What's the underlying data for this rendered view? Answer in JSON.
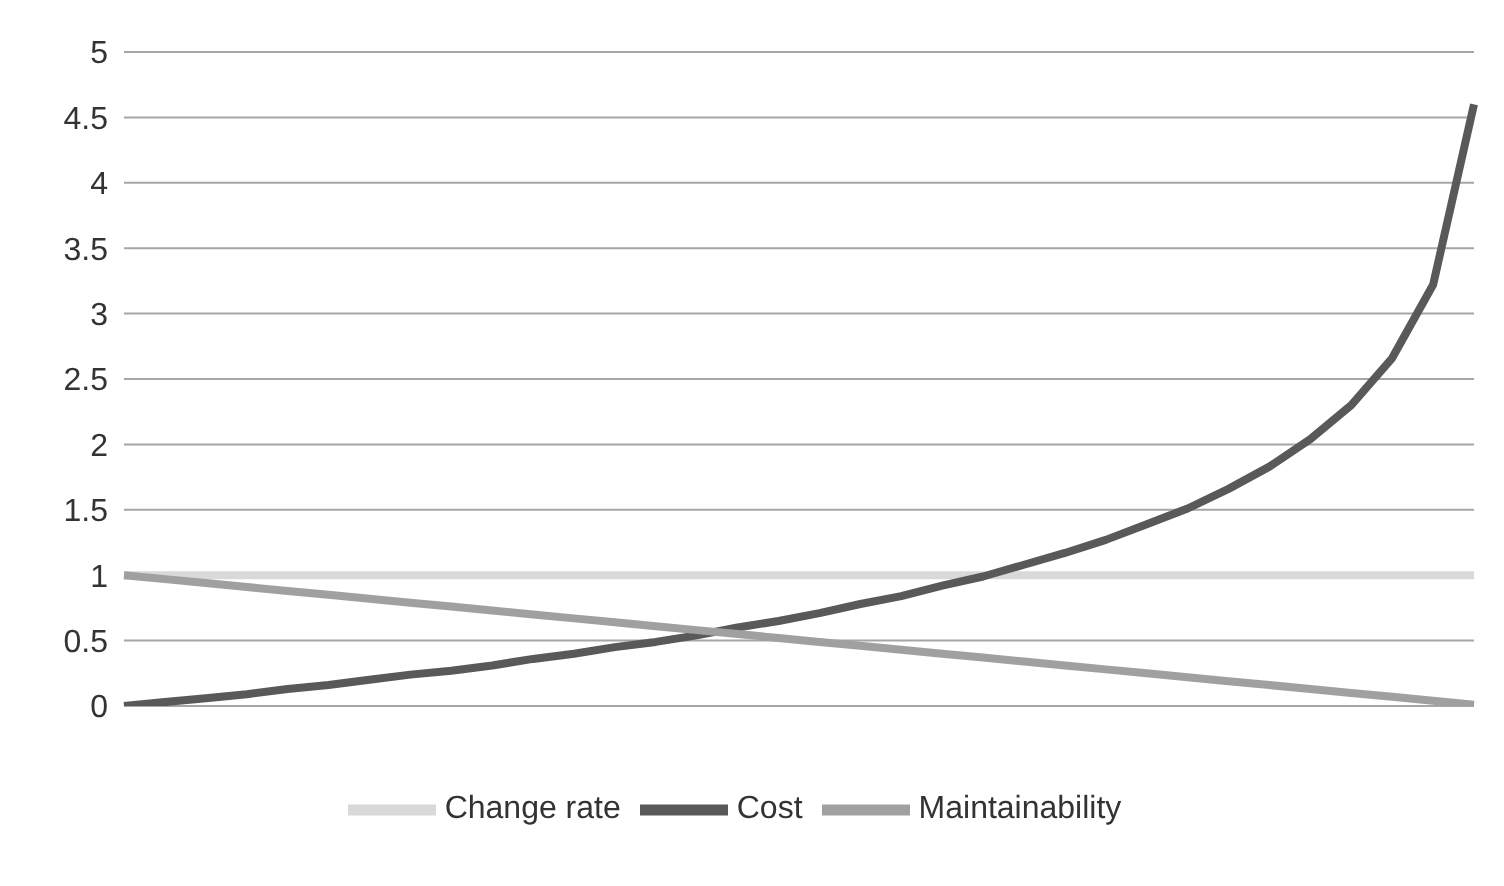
{
  "chart_data": {
    "type": "line",
    "categories": [
      null,
      null,
      null,
      null,
      null,
      null,
      null,
      null,
      null,
      null,
      null,
      null,
      null,
      null,
      null,
      null,
      null,
      null,
      null,
      null,
      null,
      null,
      null,
      null,
      null,
      null,
      null,
      null,
      null,
      null,
      null,
      null,
      null,
      null
    ],
    "ylim": [
      0,
      5
    ],
    "yticks": [
      0,
      0.5,
      1,
      1.5,
      2,
      2.5,
      3,
      3.5,
      4,
      4.5,
      5
    ],
    "grid": "y",
    "legend": "bottom",
    "marker": "none",
    "line_style": "solid",
    "series": [
      {
        "name": "Change rate",
        "color": "#d9d9d9",
        "values": [
          1,
          1,
          1,
          1,
          1,
          1,
          1,
          1,
          1,
          1,
          1,
          1,
          1,
          1,
          1,
          1,
          1,
          1,
          1,
          1,
          1,
          1,
          1,
          1,
          1,
          1,
          1,
          1,
          1,
          1,
          1,
          1,
          1,
          1
        ]
      },
      {
        "name": "Cost",
        "color": "#595959",
        "values": [
          0,
          0.03,
          0.06,
          0.09,
          0.13,
          0.16,
          0.2,
          0.24,
          0.27,
          0.31,
          0.36,
          0.4,
          0.45,
          0.49,
          0.54,
          0.6,
          0.65,
          0.71,
          0.78,
          0.84,
          0.92,
          0.99,
          1.08,
          1.17,
          1.27,
          1.39,
          1.51,
          1.66,
          1.83,
          2.04,
          2.3,
          2.66,
          3.22,
          4.6
        ]
      },
      {
        "name": "Maintainability",
        "color": "#a0a0a0",
        "values": [
          1,
          0.97,
          0.94,
          0.91,
          0.88,
          0.85,
          0.82,
          0.79,
          0.76,
          0.73,
          0.7,
          0.67,
          0.64,
          0.61,
          0.58,
          0.55,
          0.52,
          0.49,
          0.46,
          0.43,
          0.4,
          0.37,
          0.34,
          0.31,
          0.28,
          0.25,
          0.22,
          0.19,
          0.16,
          0.13,
          0.1,
          0.07,
          0.04,
          0.01
        ]
      }
    ]
  }
}
